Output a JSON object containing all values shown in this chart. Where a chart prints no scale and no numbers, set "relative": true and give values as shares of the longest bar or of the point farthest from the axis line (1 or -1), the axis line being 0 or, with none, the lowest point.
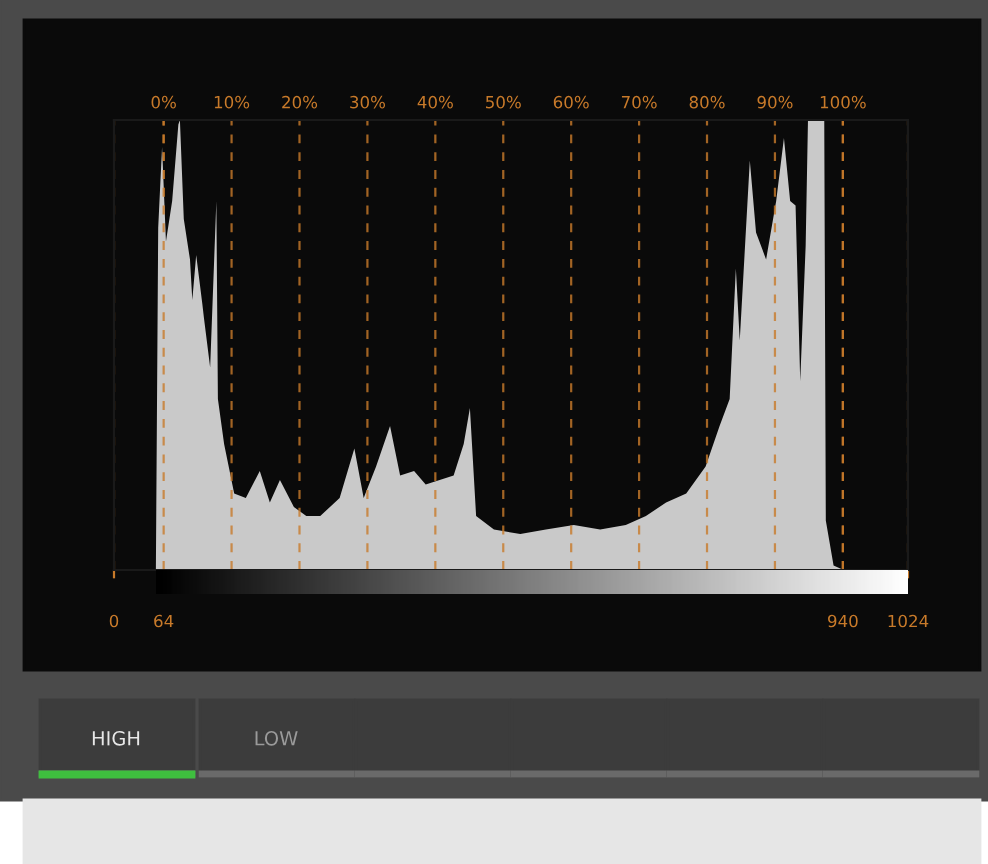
{
  "chart_data": {
    "type": "area",
    "relative": true,
    "color": "#c9c9c9",
    "x": [
      54,
      57,
      62,
      67,
      75,
      83,
      85,
      90,
      98,
      101,
      106,
      114,
      116,
      124,
      132,
      134,
      142,
      155,
      170,
      188,
      201,
      214,
      232,
      248,
      266,
      291,
      310,
      322,
      338,
      356,
      369,
      387,
      402,
      420,
      438,
      451,
      459,
      467,
      490,
      524,
      557,
      593,
      627,
      660,
      686,
      712,
      738,
      763,
      781,
      794,
      802,
      807,
      820,
      828,
      841,
      854,
      864,
      872,
      879,
      885,
      892,
      895,
      916,
      918,
      928,
      941
    ],
    "values": [
      0,
      0.76,
      0.94,
      0.73,
      0.82,
      0.99,
      1.0,
      0.78,
      0.69,
      0.6,
      0.7,
      0.59,
      0.56,
      0.45,
      0.82,
      0.38,
      0.28,
      0.17,
      0.16,
      0.22,
      0.15,
      0.2,
      0.14,
      0.12,
      0.12,
      0.16,
      0.27,
      0.16,
      0.23,
      0.32,
      0.21,
      0.22,
      0.19,
      0.2,
      0.21,
      0.28,
      0.36,
      0.12,
      0.09,
      0.08,
      0.09,
      0.1,
      0.09,
      0.1,
      0.12,
      0.15,
      0.17,
      0.23,
      0.32,
      0.38,
      0.67,
      0.51,
      0.91,
      0.75,
      0.69,
      0.82,
      0.96,
      0.82,
      0.81,
      0.42,
      0.72,
      1.0,
      1.0,
      0.11,
      0.01,
      0
    ],
    "xlim": [
      0,
      1024
    ],
    "xticks": [
      0,
      64,
      940,
      1024
    ],
    "x2lim": [
      -7.31,
      109.59
    ],
    "x2ticks": [
      {
        "value": 0,
        "label": "0%"
      },
      {
        "value": 10,
        "label": "10%"
      },
      {
        "value": 20,
        "label": "20%"
      },
      {
        "value": 30,
        "label": "30%"
      },
      {
        "value": 40,
        "label": "40%"
      },
      {
        "value": 50,
        "label": "50%"
      },
      {
        "value": 60,
        "label": "60%"
      },
      {
        "value": 70,
        "label": "70%"
      },
      {
        "value": 80,
        "label": "80%"
      },
      {
        "value": 90,
        "label": "90%"
      },
      {
        "value": 100,
        "label": "100%"
      }
    ],
    "grid": "x",
    "annotations": [
      "HIGH",
      "LOW"
    ]
  }
}
